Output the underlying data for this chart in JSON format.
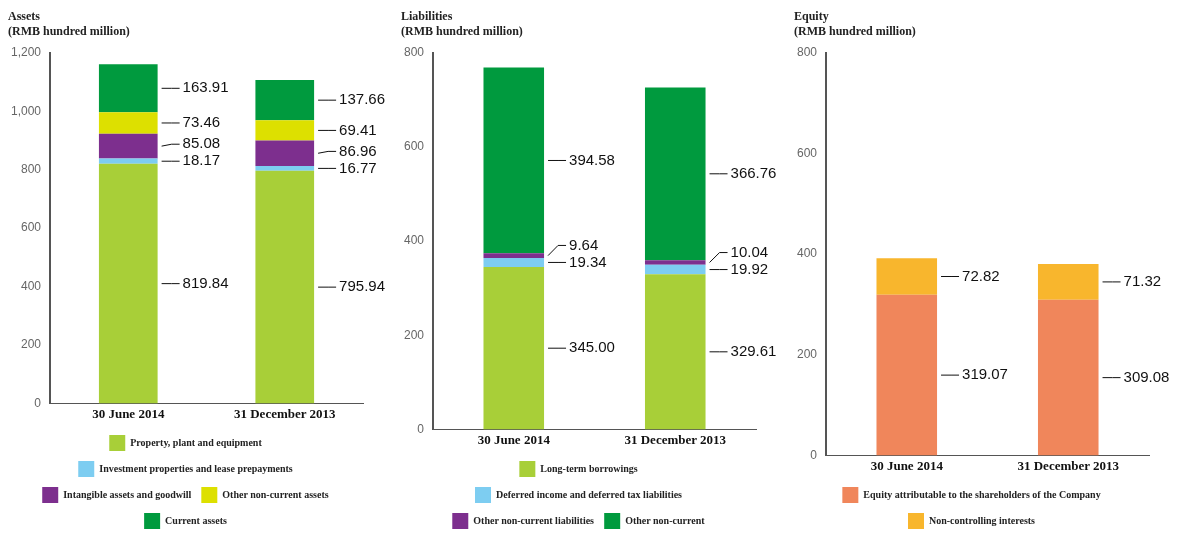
{
  "chart_data": [
    {
      "type": "bar",
      "title": "Assets",
      "subtitle": "(RMB hundred million)",
      "categories": [
        "30 June 2014",
        "31 December 2013"
      ],
      "stacked": true,
      "legend": "bottom",
      "grid": false,
      "ylim": [
        0,
        1200
      ],
      "yticks": [
        0,
        200,
        400,
        600,
        800,
        {
          "value": 1000,
          "label": "1,000"
        },
        {
          "value": 1200,
          "label": "1,200"
        }
      ],
      "series": [
        {
          "name": "Property, plant and equipment",
          "color": "#a8cf38",
          "values": [
            819.84,
            795.94
          ],
          "value_labels": [
            "819.84",
            "795.94"
          ]
        },
        {
          "name": "Investment properties and lease prepayments",
          "color": "#7dcdf1",
          "values": [
            18.17,
            16.77
          ],
          "value_labels": [
            "18.17",
            "16.77"
          ]
        },
        {
          "name": "Intangible assets and goodwill",
          "color": "#7d2f8e",
          "values": [
            85.08,
            86.96
          ],
          "value_labels": [
            "85.08",
            "86.96"
          ]
        },
        {
          "name": "Other non-current assets",
          "color": "#dde000",
          "values": [
            73.46,
            69.41
          ],
          "value_labels": [
            "73.46",
            "69.41"
          ]
        },
        {
          "name": "Current assets",
          "color": "#009a3e",
          "values": [
            163.91,
            137.66
          ],
          "value_labels": [
            "163.91",
            "137.66"
          ]
        }
      ]
    },
    {
      "type": "bar",
      "title": "Liabilities",
      "subtitle": "(RMB hundred million)",
      "categories": [
        "30 June 2014",
        "31 December 2013"
      ],
      "stacked": true,
      "legend": "bottom",
      "grid": false,
      "ylim": [
        0,
        800
      ],
      "yticks": [
        0,
        200,
        400,
        600,
        800
      ],
      "series": [
        {
          "name": "Long-term borrowings",
          "color": "#a8cf38",
          "values": [
            345.0,
            329.61
          ],
          "value_labels": [
            "345.00",
            "329.61"
          ]
        },
        {
          "name": "Deferred income and deferred tax liabilities",
          "color": "#7dcdf1",
          "values": [
            19.34,
            19.92
          ],
          "value_labels": [
            "19.34",
            "19.92"
          ]
        },
        {
          "name": "Other non-current liabilities",
          "color": "#7d2f8e",
          "values": [
            9.64,
            10.04
          ],
          "value_labels": [
            "9.64",
            "10.04"
          ]
        },
        {
          "name": "Other non-current",
          "color": "#009a3e",
          "values": [
            394.58,
            366.76
          ],
          "value_labels": [
            "394.58",
            "366.76"
          ]
        }
      ]
    },
    {
      "type": "bar",
      "title": "Equity",
      "subtitle": "(RMB hundred million)",
      "categories": [
        "30 June 2014",
        "31 December 2013"
      ],
      "stacked": true,
      "legend": "bottom",
      "grid": false,
      "ylim": [
        0,
        800
      ],
      "yticks": [
        0,
        200,
        400,
        600,
        800
      ],
      "series": [
        {
          "name": "Equity attributable to the shareholders of the Company",
          "color": "#f0865b",
          "values": [
            319.07,
            309.08
          ],
          "value_labels": [
            "319.07",
            "309.08"
          ]
        },
        {
          "name": "Non-controlling interests",
          "color": "#f8b62d",
          "values": [
            72.82,
            71.32
          ],
          "value_labels": [
            "72.82",
            "71.32"
          ]
        }
      ]
    }
  ]
}
